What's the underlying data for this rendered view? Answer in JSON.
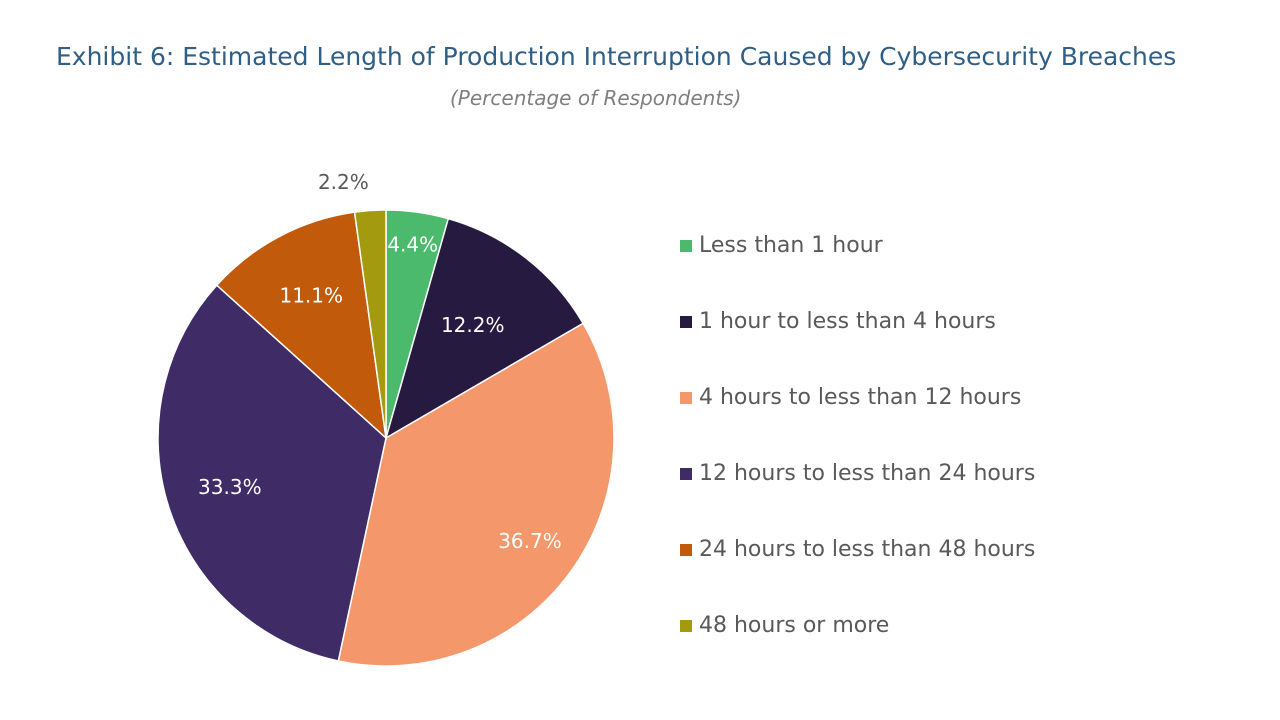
{
  "header": {
    "title": "Exhibit 6: Estimated Length of Production Interruption Caused by Cybersecurity Breaches",
    "subtitle": "(Percentage of Respondents)"
  },
  "chart_data": {
    "type": "pie",
    "title": "Exhibit 6: Estimated Length of Production Interruption Caused by Cybersecurity Breaches",
    "subtitle": "(Percentage of Respondents)",
    "legend_position": "right",
    "start_angle": "12 o'clock",
    "direction": "clockwise",
    "slices": [
      {
        "name": "Less than 1 hour",
        "value": 4.4,
        "label": "4.4%",
        "color": "#4cba6c",
        "label_color": "#ffffff"
      },
      {
        "name": "1 hour to less than 4 hours",
        "value": 12.2,
        "label": "12.2%",
        "color": "#271a40",
        "label_color": "#ffffff"
      },
      {
        "name": "4 hours to less than 12 hours",
        "value": 36.7,
        "label": "36.7%",
        "color": "#f4976a",
        "label_color": "#ffffff"
      },
      {
        "name": "12 hours to less than 24 hours",
        "value": 33.3,
        "label": "33.3%",
        "color": "#3f2b66",
        "label_color": "#ffffff"
      },
      {
        "name": "24 hours to less than 48 hours",
        "value": 11.1,
        "label": "11.1%",
        "color": "#c15a0b",
        "label_color": "#ffffff"
      },
      {
        "name": "48 hours or more",
        "value": 2.2,
        "label": "2.2%",
        "color": "#a39a10",
        "label_color": "#595959"
      }
    ]
  }
}
